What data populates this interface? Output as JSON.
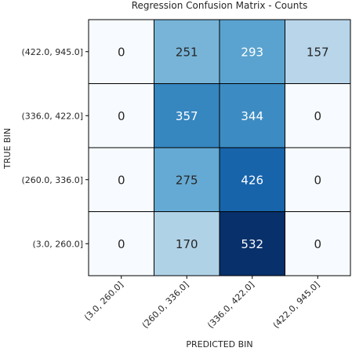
{
  "chart_data": {
    "type": "heatmap",
    "title": "Regression Confusion Matrix - Counts",
    "xlabel": "PREDICTED BIN",
    "ylabel": "TRUE BIN",
    "x_categories": [
      "(3.0, 260.0]",
      "(260.0, 336.0]",
      "(336.0, 422.0]",
      "(422.0, 945.0]"
    ],
    "y_categories": [
      "(422.0, 945.0]",
      "(336.0, 422.0]",
      "(260.0, 336.0]",
      "(3.0, 260.0]"
    ],
    "values": [
      [
        0,
        251,
        293,
        157
      ],
      [
        0,
        357,
        344,
        0
      ],
      [
        0,
        275,
        426,
        0
      ],
      [
        0,
        170,
        532,
        0
      ]
    ],
    "colormap": "Blues",
    "vmin": 0,
    "vmax": 532,
    "grid": false,
    "legend": "none"
  }
}
